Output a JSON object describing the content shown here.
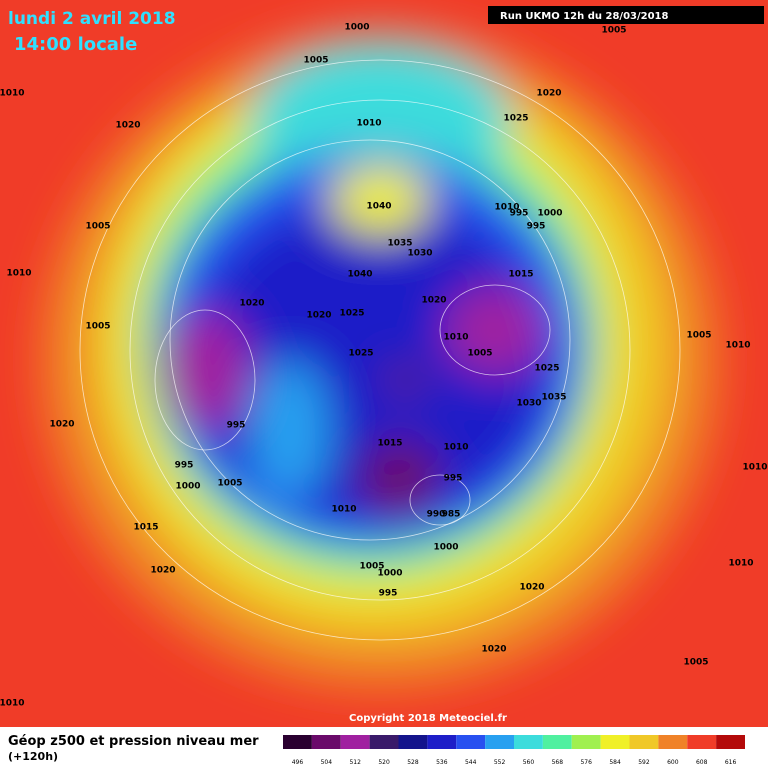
{
  "header": {
    "date": "lundi 2 avril 2018",
    "time": "14:00 locale",
    "run": "Run UKMO 12h du 28/03/2018"
  },
  "isobars": [
    "1000",
    "1005",
    "1010",
    "1005",
    "1020",
    "1020",
    "1010",
    "1025",
    "1040",
    "1010",
    "995",
    "1000",
    "995",
    "1005",
    "1035",
    "1030",
    "1010",
    "1040",
    "1015",
    "1020",
    "1020",
    "1025",
    "1020",
    "1005",
    "1005",
    "1010",
    "1005",
    "1010",
    "1025",
    "1025",
    "1035",
    "1030",
    "995",
    "1020",
    "1015",
    "1010",
    "1010",
    "995",
    "995",
    "1000",
    "1005",
    "1015",
    "1010",
    "990",
    "985",
    "1000",
    "1020",
    "1005",
    "1000",
    "1010",
    "995",
    "1020",
    "1020",
    "1005",
    "1010"
  ],
  "copyright": "Copyright 2018 Meteociel.fr",
  "legend": {
    "title": "Géop z500 et pression niveau mer",
    "subtitle": "(+120h)",
    "labels": [
      "496",
      "504",
      "512",
      "520",
      "528",
      "536",
      "544",
      "552",
      "560",
      "568",
      "576",
      "584",
      "592",
      "600",
      "608",
      "616"
    ],
    "colors": [
      "#2a0030",
      "#6a0a6a",
      "#a020a0",
      "#3a1a6a",
      "#14148c",
      "#1e1ec8",
      "#2850f0",
      "#28a0f0",
      "#3cdcdc",
      "#50f0a0",
      "#a0f050",
      "#f0f028",
      "#f0c828",
      "#f08228",
      "#f03c28",
      "#b40a0a"
    ]
  }
}
